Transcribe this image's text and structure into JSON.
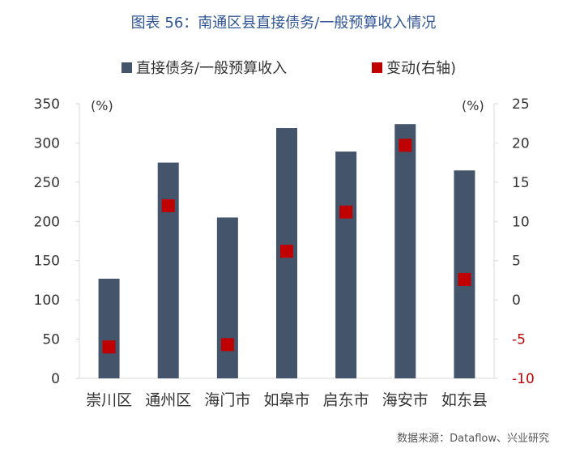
{
  "title": "图表 56：南通区县直接债务/一般预算收入情况",
  "source": "数据来源：Dataflow、兴业研究",
  "colors": {
    "bar": "#44546a",
    "marker": "#c00000",
    "negative_tick": "#c00000",
    "title": "#2f5597",
    "axis": "#d9d9d9",
    "text": "#333333"
  },
  "chart_data": {
    "type": "bar",
    "categories": [
      "崇川区",
      "通州区",
      "海门市",
      "如皋市",
      "启东市",
      "海安市",
      "如东县"
    ],
    "series": [
      {
        "name": "直接债务/一般预算收入",
        "axis": "left",
        "kind": "bar",
        "values": [
          127,
          275,
          205,
          319,
          289,
          324,
          265
        ]
      },
      {
        "name": "变动(右轴)",
        "axis": "right",
        "kind": "marker",
        "values": [
          -6,
          12,
          -5.7,
          6.2,
          11.2,
          19.7,
          2.6
        ]
      }
    ],
    "left_axis": {
      "unit_label": "(%)",
      "ylim": [
        0,
        350
      ],
      "ticks": [
        "0",
        "50",
        "100",
        "150",
        "200",
        "250",
        "300",
        "350"
      ]
    },
    "right_axis": {
      "unit_label": "(%)",
      "ylim": [
        -10,
        25
      ],
      "ticks": [
        "-10",
        "-5",
        "0",
        "5",
        "10",
        "15",
        "20",
        "25"
      ]
    },
    "legend_position": "top",
    "grid": false
  }
}
